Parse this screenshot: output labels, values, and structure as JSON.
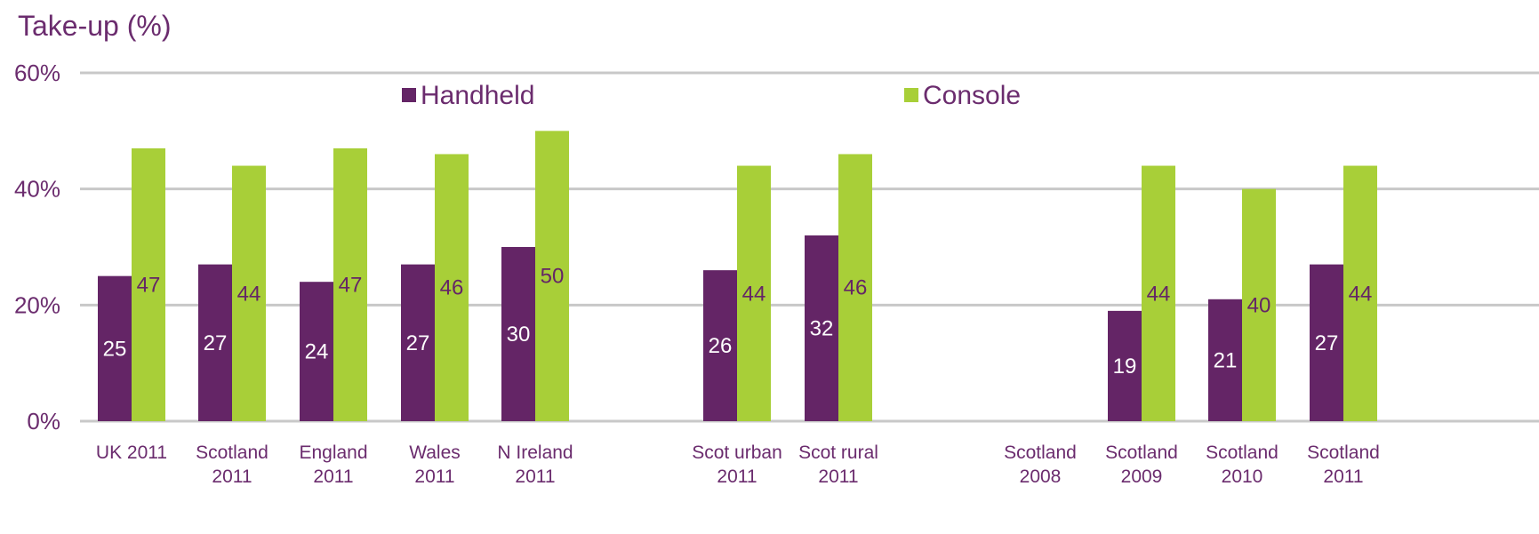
{
  "chart_data": {
    "type": "bar",
    "ylabel": "Take-up (%)",
    "ylim": [
      0,
      60
    ],
    "yticks": [
      0,
      20,
      40,
      60
    ],
    "ytick_labels": [
      "0%",
      "20%",
      "40%",
      "60%"
    ],
    "grid": true,
    "legend_position": "top",
    "categories": [
      [
        "UK 2011"
      ],
      [
        "Scotland",
        "2011"
      ],
      [
        "England",
        "2011"
      ],
      [
        "Wales",
        "2011"
      ],
      [
        "N Ireland",
        "2011"
      ],
      [
        "Scot urban",
        "2011"
      ],
      [
        "Scot rural",
        "2011"
      ],
      [
        "Scotland",
        "2008"
      ],
      [
        "Scotland",
        "2009"
      ],
      [
        "Scotland",
        "2010"
      ],
      [
        "Scotland",
        "2011"
      ]
    ],
    "series": [
      {
        "name": "Handheld",
        "color": "#642566",
        "label_color": "#ffffff",
        "values": [
          25,
          27,
          24,
          27,
          30,
          26,
          32,
          null,
          19,
          21,
          27
        ]
      },
      {
        "name": "Console",
        "color": "#a8cf38",
        "label_color": "#642566",
        "values": [
          47,
          44,
          47,
          46,
          50,
          44,
          46,
          null,
          44,
          40,
          44
        ]
      }
    ],
    "text_color": "#6b2c6e",
    "grid_color": "#c8c8c8"
  }
}
